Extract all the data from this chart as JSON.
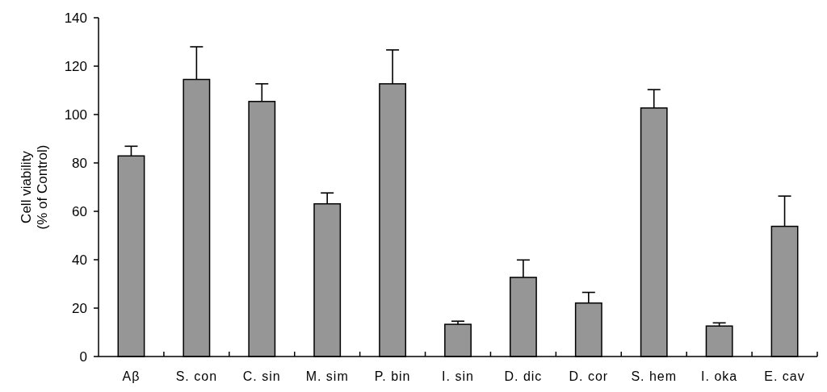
{
  "chart_data": {
    "type": "bar",
    "ylabel": "Cell viability\n(% of Control)",
    "categories": [
      "Aβ",
      "S. con",
      "C. sin",
      "M. sim",
      "P. bin",
      "I. sin",
      "D. dic",
      "D. cor",
      "S. hem",
      "I. oka",
      "E. cav"
    ],
    "values": [
      82.9,
      114.5,
      105.4,
      63.1,
      112.7,
      13.3,
      32.7,
      22.1,
      102.7,
      12.6,
      53.8
    ],
    "errors": [
      4,
      13.5,
      7.3,
      4.5,
      14,
      1.3,
      7.2,
      4.4,
      7.6,
      1.3,
      12.5
    ],
    "color": "#969696",
    "ylim": [
      0,
      140
    ],
    "yticks": [
      0,
      20,
      40,
      60,
      80,
      100,
      120,
      140
    ],
    "grid": false
  }
}
